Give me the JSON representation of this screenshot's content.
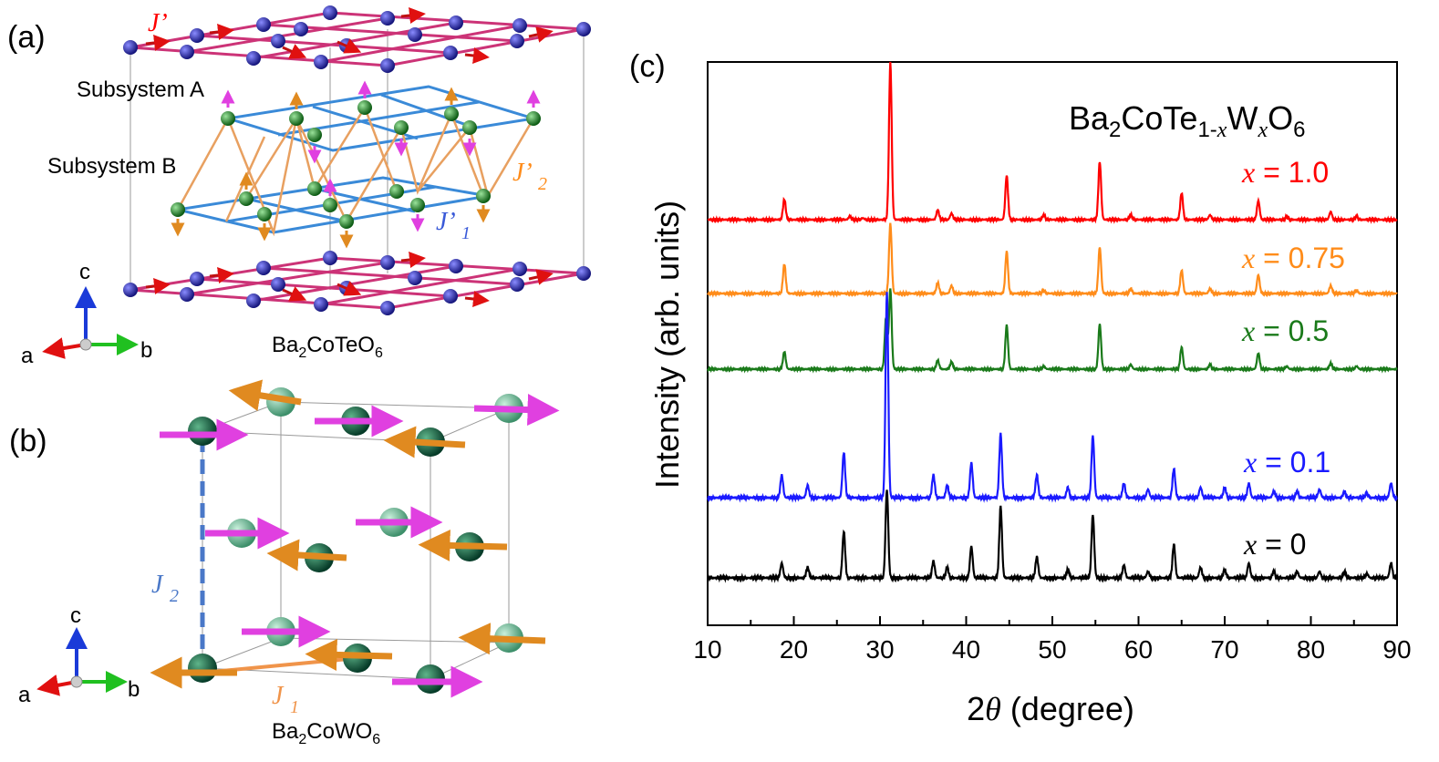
{
  "panel_a": {
    "label": "(a)",
    "coupling_jprime": "J’",
    "subsystem_a": "Subsystem A",
    "subsystem_b": "Subsystem B",
    "coupling_j2prime": "J’",
    "coupling_j2prime_sub": "2",
    "coupling_j1prime": "J’",
    "coupling_j1prime_sub": "1",
    "axis_c": "c",
    "axis_a": "a",
    "axis_b": "b",
    "formula_main": "Ba",
    "formula_sub1": "2",
    "formula_mid": "CoTeO",
    "formula_sub2": "6"
  },
  "panel_b": {
    "label": "(b)",
    "coupling_j2": "J",
    "coupling_j2_sub": "2",
    "coupling_j1": "J",
    "coupling_j1_sub": "1",
    "axis_c": "c",
    "axis_a": "a",
    "axis_b": "b",
    "formula_main": "Ba",
    "formula_sub1": "2",
    "formula_mid": "CoWO",
    "formula_sub2": "6"
  },
  "panel_c": {
    "label": "(c)",
    "compound": {
      "a": "Ba",
      "s1": "2",
      "b": "CoTe",
      "s2": "1-",
      "x1": "x",
      "c": "W",
      "x2": "x",
      "d": "O",
      "s3": "6"
    }
  },
  "colors": {
    "red": "#ff0000",
    "orange": "#ff8c1a",
    "green": "#1a7a1a",
    "blue": "#1a1aff",
    "black": "#000000",
    "magenta_lattice": "#cc3377",
    "blue_lattice": "#3a8ad8"
  },
  "chart_data": {
    "type": "line",
    "xlabel": "2θ (degree)",
    "xlabel_sym": "θ",
    "xlabel_pre": "2",
    "xlabel_post": " (degree)",
    "ylabel": "Intensity (arb. units)",
    "xlim": [
      10,
      90
    ],
    "xticks": [
      "10",
      "20",
      "30",
      "40",
      "50",
      "60",
      "70",
      "80",
      "90"
    ],
    "yticks_shown": false,
    "series": [
      {
        "name": "x = 1.0",
        "var": "x",
        "value": " = 1.0",
        "color": "#ff0000",
        "baseline": 0.25,
        "peaks": [
          [
            18.9,
            0.13
          ],
          [
            26.5,
            0.02
          ],
          [
            28.0,
            0.01
          ],
          [
            31.2,
            1.0
          ],
          [
            36.7,
            0.06
          ],
          [
            38.3,
            0.04
          ],
          [
            44.7,
            0.28
          ],
          [
            49.0,
            0.03
          ],
          [
            55.5,
            0.37
          ],
          [
            59.1,
            0.03
          ],
          [
            65.0,
            0.17
          ],
          [
            68.3,
            0.03
          ],
          [
            73.9,
            0.12
          ],
          [
            77.2,
            0.02
          ],
          [
            82.3,
            0.05
          ],
          [
            85.3,
            0.02
          ]
        ]
      },
      {
        "name": "x = 0.75",
        "var": "x",
        "value": " = 0.75",
        "color": "#ff8c1a",
        "baseline": 0.25,
        "peaks": [
          [
            18.9,
            0.19
          ],
          [
            31.2,
            0.45
          ],
          [
            36.7,
            0.07
          ],
          [
            38.3,
            0.05
          ],
          [
            44.7,
            0.27
          ],
          [
            49.0,
            0.02
          ],
          [
            55.5,
            0.3
          ],
          [
            59.1,
            0.03
          ],
          [
            65.0,
            0.15
          ],
          [
            68.3,
            0.03
          ],
          [
            73.9,
            0.12
          ],
          [
            82.3,
            0.05
          ],
          [
            85.3,
            0.02
          ]
        ]
      },
      {
        "name": "x = 0.5",
        "var": "x",
        "value": " = 0.5",
        "color": "#1a7a1a",
        "baseline": 0.25,
        "peaks": [
          [
            18.9,
            0.12
          ],
          [
            30.7,
            0.35
          ],
          [
            31.2,
            0.55
          ],
          [
            36.7,
            0.06
          ],
          [
            38.3,
            0.05
          ],
          [
            44.7,
            0.3
          ],
          [
            49.0,
            0.02
          ],
          [
            55.5,
            0.31
          ],
          [
            59.1,
            0.03
          ],
          [
            65.0,
            0.15
          ],
          [
            68.3,
            0.03
          ],
          [
            73.9,
            0.11
          ],
          [
            77.2,
            0.02
          ],
          [
            82.3,
            0.04
          ],
          [
            85.3,
            0.02
          ]
        ]
      },
      {
        "name": "x = 0.1",
        "var": "x",
        "value": " = 0.1",
        "color": "#1a1aff",
        "baseline": 0.25,
        "peaks": [
          [
            18.6,
            0.11
          ],
          [
            21.6,
            0.06
          ],
          [
            25.8,
            0.22
          ],
          [
            30.8,
            1.0
          ],
          [
            36.2,
            0.11
          ],
          [
            37.8,
            0.06
          ],
          [
            40.6,
            0.17
          ],
          [
            44.0,
            0.31
          ],
          [
            48.2,
            0.11
          ],
          [
            51.8,
            0.05
          ],
          [
            54.7,
            0.3
          ],
          [
            58.3,
            0.07
          ],
          [
            61.1,
            0.04
          ],
          [
            64.1,
            0.14
          ],
          [
            67.2,
            0.05
          ],
          [
            70.0,
            0.05
          ],
          [
            72.8,
            0.07
          ],
          [
            75.7,
            0.03
          ],
          [
            78.4,
            0.03
          ],
          [
            81.0,
            0.04
          ],
          [
            83.9,
            0.03
          ],
          [
            86.5,
            0.02
          ],
          [
            89.3,
            0.07
          ]
        ]
      },
      {
        "name": "x = 0",
        "var": "x",
        "value": " = 0",
        "color": "#000000",
        "baseline": 0.25,
        "peaks": [
          [
            18.6,
            0.07
          ],
          [
            21.6,
            0.05
          ],
          [
            25.8,
            0.22
          ],
          [
            30.8,
            0.42
          ],
          [
            36.2,
            0.08
          ],
          [
            37.8,
            0.05
          ],
          [
            40.6,
            0.15
          ],
          [
            44.0,
            0.34
          ],
          [
            48.2,
            0.1
          ],
          [
            51.8,
            0.04
          ],
          [
            54.7,
            0.3
          ],
          [
            58.3,
            0.06
          ],
          [
            61.1,
            0.03
          ],
          [
            64.1,
            0.16
          ],
          [
            67.2,
            0.05
          ],
          [
            70.0,
            0.04
          ],
          [
            72.8,
            0.07
          ],
          [
            75.7,
            0.03
          ],
          [
            78.4,
            0.03
          ],
          [
            81.0,
            0.03
          ],
          [
            83.9,
            0.03
          ],
          [
            86.5,
            0.02
          ],
          [
            89.3,
            0.07
          ]
        ]
      }
    ]
  }
}
